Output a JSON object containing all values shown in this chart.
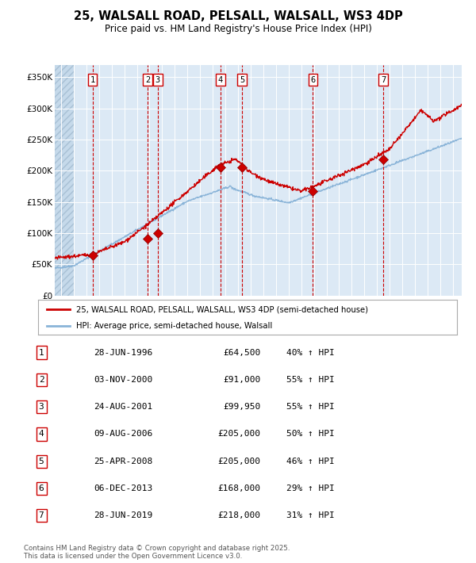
{
  "title": "25, WALSALL ROAD, PELSALL, WALSALL, WS3 4DP",
  "subtitle": "Price paid vs. HM Land Registry's House Price Index (HPI)",
  "plot_bg_color": "#dce9f5",
  "grid_color": "#ffffff",
  "red_line_color": "#cc0000",
  "blue_line_color": "#8ab4d8",
  "dashed_vline_color": "#cc0000",
  "transactions": [
    {
      "num": 1,
      "date_str": "28-JUN-1996",
      "date_x": 1996.49,
      "price": 64500,
      "pct": "40%",
      "marker_y": 64500
    },
    {
      "num": 2,
      "date_str": "03-NOV-2000",
      "date_x": 2000.84,
      "price": 91000,
      "pct": "55%",
      "marker_y": 91000
    },
    {
      "num": 3,
      "date_str": "24-AUG-2001",
      "date_x": 2001.65,
      "price": 99950,
      "pct": "55%",
      "marker_y": 99950
    },
    {
      "num": 4,
      "date_str": "09-AUG-2006",
      "date_x": 2006.61,
      "price": 205000,
      "pct": "50%",
      "marker_y": 205000
    },
    {
      "num": 5,
      "date_str": "25-APR-2008",
      "date_x": 2008.32,
      "price": 205000,
      "pct": "46%",
      "marker_y": 205000
    },
    {
      "num": 6,
      "date_str": "06-DEC-2013",
      "date_x": 2013.93,
      "price": 168000,
      "pct": "29%",
      "marker_y": 168000
    },
    {
      "num": 7,
      "date_str": "28-JUN-2019",
      "date_x": 2019.49,
      "price": 218000,
      "pct": "31%",
      "marker_y": 218000
    }
  ],
  "legend_label_red": "25, WALSALL ROAD, PELSALL, WALSALL, WS3 4DP (semi-detached house)",
  "legend_label_blue": "HPI: Average price, semi-detached house, Walsall",
  "footer": "Contains HM Land Registry data © Crown copyright and database right 2025.\nThis data is licensed under the Open Government Licence v3.0.",
  "ylim": [
    0,
    370000
  ],
  "xlim_start": 1993.5,
  "xlim_end": 2025.7,
  "yticks": [
    0,
    50000,
    100000,
    150000,
    200000,
    250000,
    300000,
    350000
  ],
  "ytick_labels": [
    "£0",
    "£50K",
    "£100K",
    "£150K",
    "£200K",
    "£250K",
    "£300K",
    "£350K"
  ]
}
